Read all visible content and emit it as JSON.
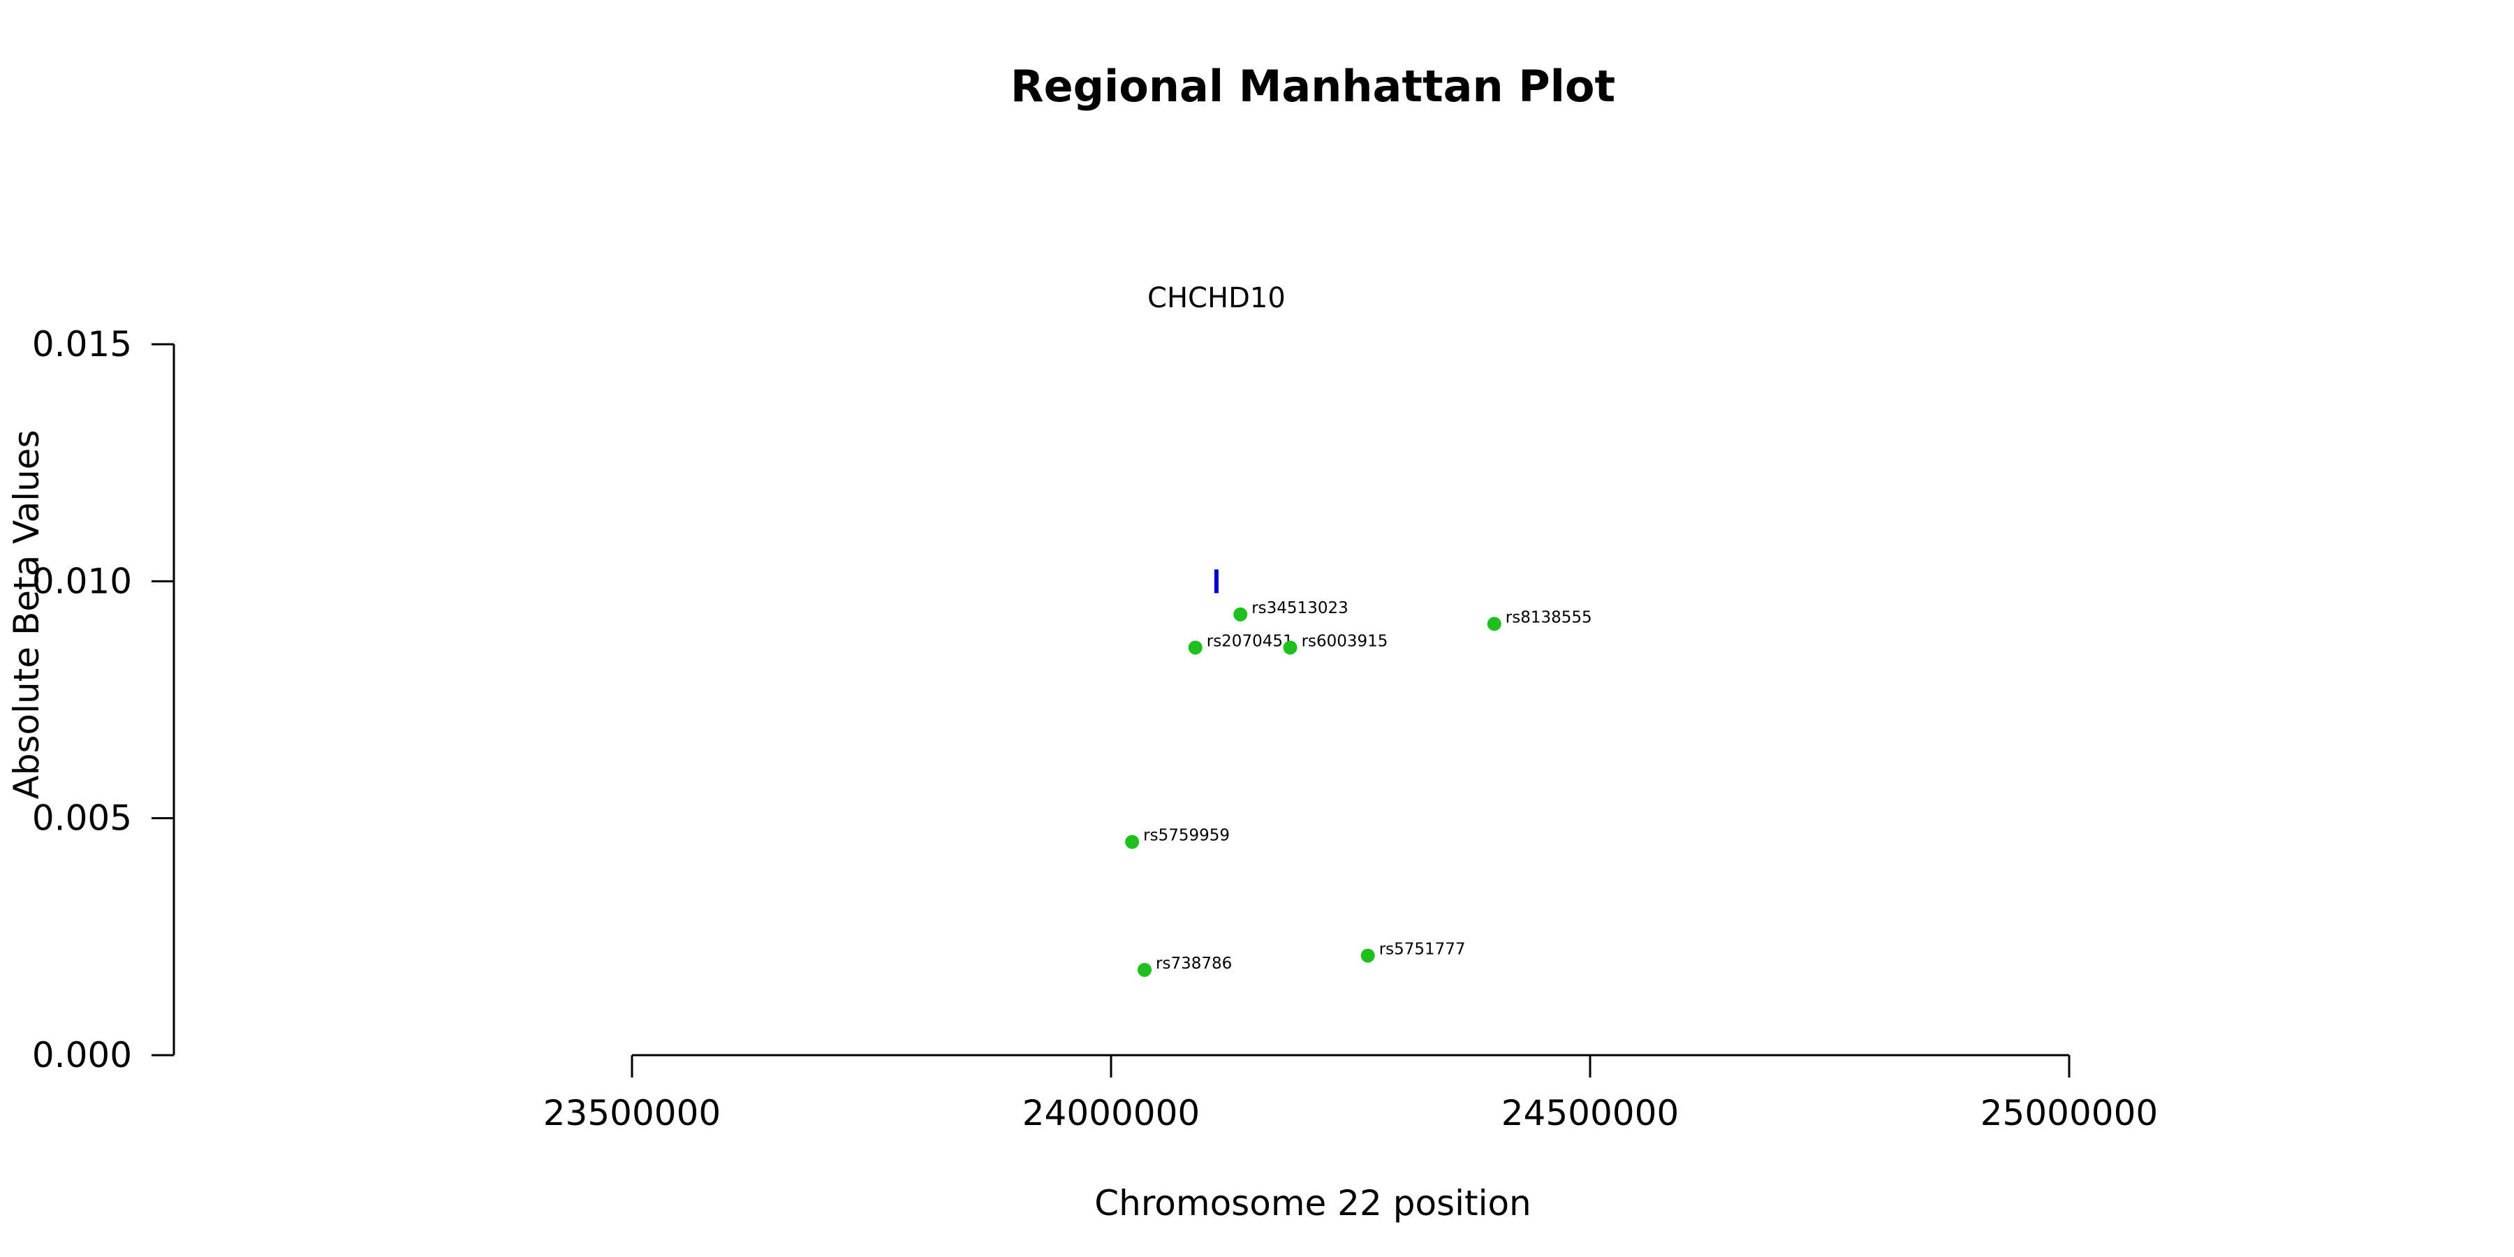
{
  "chart_data": {
    "type": "scatter",
    "title": "Regional Manhattan Plot",
    "xlabel": "Chromosome 22 position",
    "ylabel": "Absolute Beta Values",
    "xlim": [
      23500000,
      25000000
    ],
    "ylim": [
      0,
      0.015
    ],
    "x_ticks": [
      23500000,
      24000000,
      24500000,
      25000000
    ],
    "x_tick_labels": [
      "23500000",
      "24000000",
      "24500000",
      "25000000"
    ],
    "y_ticks": [
      0,
      0.005,
      0.01,
      0.015
    ],
    "y_tick_labels": [
      "0.000",
      "0.005",
      "0.010",
      "0.015"
    ],
    "grid": false,
    "point_color": "#1fbf1f",
    "gene": {
      "name": "CHCHD10",
      "x": 24110000,
      "y_center": 0.01,
      "color": "#0000cc"
    },
    "points": [
      {
        "label": "rs34513023",
        "x": 24135000,
        "y": 0.0093
      },
      {
        "label": "rs8138555",
        "x": 24400000,
        "y": 0.0091
      },
      {
        "label": "rs2070451",
        "x": 24088000,
        "y": 0.0086
      },
      {
        "label": "rs6003915",
        "x": 24187000,
        "y": 0.0086
      },
      {
        "label": "rs5759959",
        "x": 24022000,
        "y": 0.0045
      },
      {
        "label": "rs5751777",
        "x": 24268000,
        "y": 0.0021
      },
      {
        "label": "rs738786",
        "x": 24035000,
        "y": 0.0018
      }
    ]
  }
}
